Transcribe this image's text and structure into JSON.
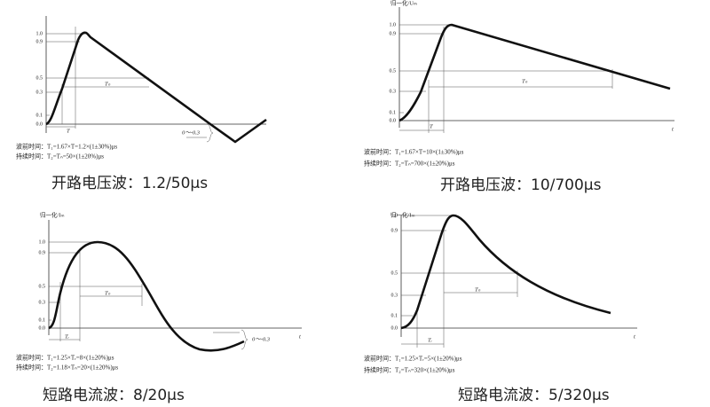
{
  "panels": [
    {
      "ticks": [
        "1.0",
        "0.9",
        "0.5",
        "0.3",
        "0.1",
        "0.0"
      ],
      "annotations": [
        "T",
        "Tₙ",
        "0～-0.3"
      ],
      "formulas": [
        "波前时间：T₁=1.67×T=1.2×(1±30%)μs",
        "持续时间：T₂=Tₙ=50×(1±20%)μs"
      ],
      "caption": "开路电压波：1.2/50μs"
    },
    {
      "y_label": "归一化/Uₘ",
      "axis_label": "t",
      "ticks": [
        "1.0",
        "0.9",
        "0.5",
        "0.3",
        "0.1",
        "0.0"
      ],
      "annotations": [
        "T",
        "Tₙ"
      ],
      "formulas": [
        "波前时间：T₁=1.67×T=10×(1±30%)μs",
        "持续时间：T₂=Tₙ=700×(1±20%)μs"
      ],
      "caption": "开路电压波：10/700μs"
    },
    {
      "y_label": "归一化/Iₘ",
      "axis_label": "t",
      "ticks": [
        "1.0",
        "0.9",
        "0.5",
        "0.3",
        "0.1",
        "0.0"
      ],
      "annotations": [
        "Tᵣ",
        "Tₙ",
        "0～-0.3"
      ],
      "formulas": [
        "波前时间：T₁=1.25×Tᵣ=8×(1±20%)μs",
        "持续时间：T₂=1.18×Tₙ=20×(1±20%)μs"
      ],
      "caption": "短路电流波：8/20μs"
    },
    {
      "y_label": "归一化/Iₘ",
      "axis_label": "t",
      "ticks": [
        "1.0",
        "0.9",
        "0.5",
        "0.3",
        "0.1",
        "0.0"
      ],
      "annotations": [
        "Tᵣ",
        "Tₙ"
      ],
      "formulas": [
        "波前时间：T₁=1.25×Tᵣ=5×(1±20%)μs",
        "持续时间：T₂=Tₙ=320×(1±20%)μs"
      ],
      "caption": "短路电流波：5/320μs"
    }
  ]
}
